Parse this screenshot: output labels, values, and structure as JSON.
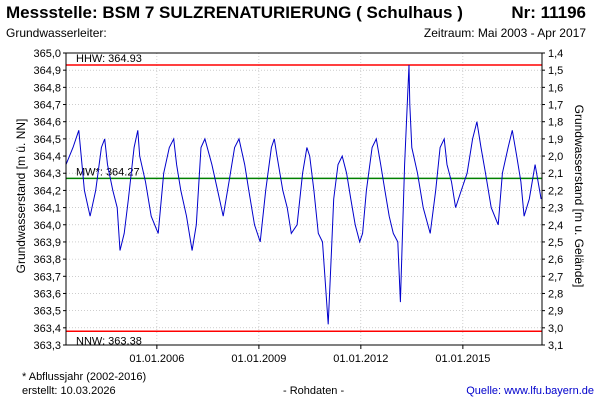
{
  "header": {
    "title": "Messstelle: BSM 7 SULZRENATURIERUNG ( Schulhaus )",
    "nr": "Nr: 11196",
    "aquifer": "Grundwasserleiter:",
    "period": "Zeitraum: Mai 2003 - Apr 2017"
  },
  "footer": {
    "footnote": "* Abflussjahr (2002-2016)",
    "created": "erstellt:  10.03.2026",
    "rawdata": "- Rohdaten -",
    "source": "Quelle: www.lfu.bayern.de"
  },
  "colors": {
    "series": "#0000cc",
    "hhw": "#ff0000",
    "nnw": "#ff0000",
    "mw": "#008000",
    "grid": "#b0b0b0"
  },
  "chart_data": {
    "type": "line",
    "ylabel": "Grundwasserstand [m ü. NN]",
    "ylabel_right": "Grundwasserstand [m u. Gelände]",
    "ylim": [
      363.3,
      365.0
    ],
    "ylim_right": [
      3.1,
      1.4
    ],
    "xlim": [
      "2003-05-01",
      "2017-04-30"
    ],
    "y_ticks": [
      "365,0",
      "364,9",
      "364,8",
      "364,7",
      "364,6",
      "364,5",
      "364,4",
      "364,3",
      "364,2",
      "364,1",
      "364,0",
      "363,9",
      "363,8",
      "363,7",
      "363,6",
      "363,5",
      "363,4",
      "363,3"
    ],
    "y_ticks_right": [
      "1,4",
      "1,5",
      "1,6",
      "1,7",
      "1,8",
      "1,9",
      "2,0",
      "2,1",
      "2,2",
      "2,3",
      "2,4",
      "2,5",
      "2,6",
      "2,7",
      "2,8",
      "2,9",
      "3,0",
      "3,1"
    ],
    "x_ticks": [
      {
        "date": "2006-01-01",
        "label": "01.01.2006"
      },
      {
        "date": "2009-01-01",
        "label": "01.01.2009"
      },
      {
        "date": "2012-01-01",
        "label": "01.01.2012"
      },
      {
        "date": "2015-01-01",
        "label": "01.01.2015"
      }
    ],
    "reference_lines": [
      {
        "label": "HHW: 364.93",
        "value": 364.93
      },
      {
        "label": "MW*: 364.27",
        "value": 364.27
      },
      {
        "label": "NNW: 363.38",
        "value": 363.38
      }
    ],
    "series": [
      {
        "x": [
          "2003-05-01",
          "2003-07-15",
          "2003-09-15",
          "2003-11-15",
          "2004-01-15",
          "2004-03-15",
          "2004-05-15",
          "2004-06-20",
          "2004-07-20",
          "2004-09-15",
          "2004-11-01",
          "2004-12-01",
          "2005-01-15",
          "2005-03-01",
          "2005-05-01",
          "2005-06-10",
          "2005-07-01",
          "2005-09-01",
          "2005-11-01",
          "2006-01-15",
          "2006-03-15",
          "2006-05-15",
          "2006-07-01",
          "2006-08-01",
          "2006-09-15",
          "2006-11-15",
          "2007-01-15",
          "2007-03-01",
          "2007-04-20",
          "2007-06-01",
          "2007-08-15",
          "2007-10-15",
          "2007-12-15",
          "2008-02-15",
          "2008-04-15",
          "2008-06-01",
          "2008-08-01",
          "2008-09-15",
          "2008-11-15",
          "2009-01-15",
          "2009-03-15",
          "2009-05-15",
          "2009-06-15",
          "2009-07-15",
          "2009-09-15",
          "2009-11-01",
          "2009-12-15",
          "2010-02-15",
          "2010-04-15",
          "2010-06-01",
          "2010-07-01",
          "2010-08-15",
          "2010-10-01",
          "2010-11-15",
          "2011-01-15",
          "2011-02-20",
          "2011-03-15",
          "2011-05-01",
          "2011-06-15",
          "2011-08-01",
          "2011-09-15",
          "2011-11-01",
          "2011-12-20",
          "2012-01-20",
          "2012-03-01",
          "2012-05-01",
          "2012-06-15",
          "2012-08-01",
          "2012-09-15",
          "2012-11-01",
          "2012-12-15",
          "2013-02-01",
          "2013-03-01",
          "2013-04-15",
          "2013-06-01",
          "2013-06-10",
          "2013-07-01",
          "2013-09-01",
          "2013-11-01",
          "2014-01-15",
          "2014-03-15",
          "2014-05-01",
          "2014-06-15",
          "2014-07-15",
          "2014-09-01",
          "2014-10-15",
          "2014-12-15",
          "2015-02-15",
          "2015-04-15",
          "2015-06-01",
          "2015-07-15",
          "2015-09-01",
          "2015-11-01",
          "2016-01-15",
          "2016-03-01",
          "2016-05-01",
          "2016-06-15",
          "2016-08-01",
          "2016-09-15",
          "2016-10-20",
          "2016-12-15",
          "2017-02-15",
          "2017-04-20"
        ],
        "y": [
          364.35,
          364.45,
          364.55,
          364.2,
          364.05,
          364.2,
          364.45,
          364.5,
          364.35,
          364.2,
          364.1,
          363.85,
          363.95,
          364.15,
          364.45,
          364.55,
          364.4,
          364.25,
          364.05,
          363.95,
          364.3,
          364.45,
          364.5,
          364.35,
          364.2,
          364.05,
          363.85,
          364.0,
          364.45,
          364.5,
          364.35,
          364.2,
          364.05,
          364.25,
          364.45,
          364.5,
          364.35,
          364.2,
          364.0,
          363.9,
          364.2,
          364.45,
          364.5,
          364.4,
          364.2,
          364.1,
          363.95,
          364.0,
          364.3,
          364.45,
          364.4,
          364.2,
          363.95,
          363.9,
          363.42,
          363.85,
          364.15,
          364.35,
          364.4,
          364.3,
          364.15,
          364.0,
          363.9,
          363.95,
          364.2,
          364.45,
          364.5,
          364.35,
          364.2,
          364.05,
          363.95,
          363.9,
          363.55,
          364.35,
          364.93,
          364.7,
          364.45,
          364.3,
          364.1,
          363.95,
          364.2,
          364.45,
          364.5,
          364.35,
          364.25,
          364.1,
          364.2,
          364.3,
          364.5,
          364.6,
          364.45,
          364.3,
          364.1,
          364.0,
          364.3,
          364.45,
          364.55,
          364.4,
          364.25,
          364.05,
          364.15,
          364.35,
          364.15
        ]
      }
    ]
  }
}
